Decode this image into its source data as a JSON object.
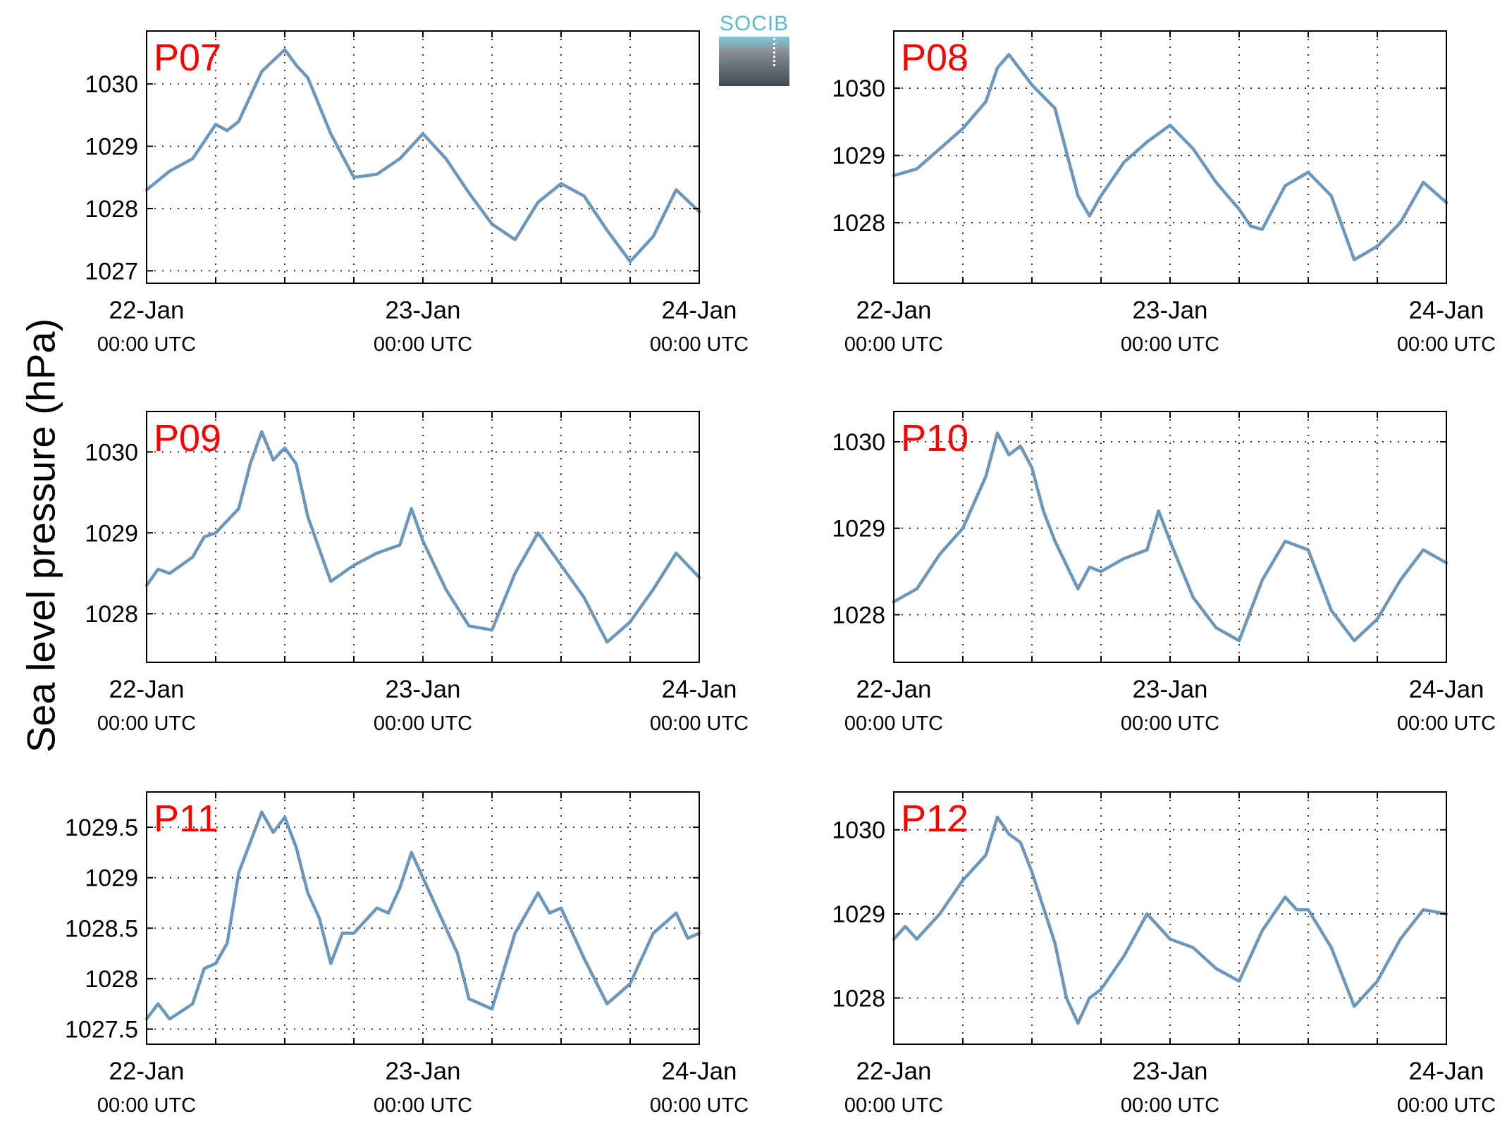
{
  "figure": {
    "ylabel": "Sea level pressure (hPa)",
    "logo_text": "SOCIB",
    "x_tick_dates": [
      "22-Jan",
      "23-Jan",
      "24-Jan"
    ],
    "x_tick_times": [
      "00:00 UTC",
      "00:00 UTC",
      "00:00 UTC"
    ],
    "line_color": "#6b97bd",
    "label_color": "#ff0000"
  },
  "chart_data": [
    {
      "type": "line",
      "title": "P07",
      "xlim": [
        0,
        48
      ],
      "ylim": [
        1026.8,
        1030.85
      ],
      "yticks": [
        1027,
        1028,
        1029,
        1030
      ],
      "ytick_labels": [
        "1027",
        "1028",
        "1029",
        "1030"
      ],
      "x": [
        0,
        2,
        4,
        6,
        7,
        8,
        10,
        12,
        13,
        14,
        16,
        18,
        20,
        22,
        24,
        26,
        28,
        30,
        32,
        34,
        36,
        38,
        40,
        42,
        44,
        46,
        48
      ],
      "values": [
        1028.3,
        1028.6,
        1028.8,
        1029.35,
        1029.25,
        1029.4,
        1030.2,
        1030.55,
        1030.3,
        1030.1,
        1029.2,
        1028.5,
        1028.55,
        1028.8,
        1029.2,
        1028.8,
        1028.25,
        1027.75,
        1027.5,
        1028.1,
        1028.4,
        1028.2,
        1027.65,
        1027.15,
        1027.55,
        1028.3,
        1027.95
      ]
    },
    {
      "type": "line",
      "title": "P08",
      "xlim": [
        0,
        48
      ],
      "ylim": [
        1027.1,
        1030.85
      ],
      "yticks": [
        1028,
        1029,
        1030
      ],
      "ytick_labels": [
        "1028",
        "1029",
        "1030"
      ],
      "x": [
        0,
        2,
        4,
        6,
        8,
        9,
        10,
        12,
        14,
        16,
        17,
        18,
        20,
        22,
        24,
        26,
        28,
        30,
        31,
        32,
        34,
        36,
        38,
        40,
        42,
        44,
        46,
        48
      ],
      "values": [
        1028.7,
        1028.8,
        1029.1,
        1029.4,
        1029.8,
        1030.3,
        1030.5,
        1030.05,
        1029.7,
        1028.4,
        1028.1,
        1028.4,
        1028.9,
        1029.2,
        1029.45,
        1029.1,
        1028.6,
        1028.2,
        1027.95,
        1027.9,
        1028.55,
        1028.75,
        1028.4,
        1027.45,
        1027.65,
        1028.0,
        1028.6,
        1028.3
      ]
    },
    {
      "type": "line",
      "title": "P09",
      "xlim": [
        0,
        48
      ],
      "ylim": [
        1027.4,
        1030.5
      ],
      "yticks": [
        1028,
        1029,
        1030
      ],
      "ytick_labels": [
        "1028",
        "1029",
        "1030"
      ],
      "x": [
        0,
        1,
        2,
        4,
        5,
        6,
        8,
        9,
        10,
        11,
        12,
        13,
        14,
        16,
        18,
        20,
        22,
        23,
        24,
        26,
        28,
        30,
        32,
        34,
        36,
        38,
        40,
        42,
        44,
        46,
        48
      ],
      "values": [
        1028.35,
        1028.55,
        1028.5,
        1028.7,
        1028.95,
        1029.0,
        1029.3,
        1029.85,
        1030.25,
        1029.9,
        1030.05,
        1029.85,
        1029.2,
        1028.4,
        1028.6,
        1028.75,
        1028.85,
        1029.3,
        1028.9,
        1028.3,
        1027.85,
        1027.8,
        1028.5,
        1029.0,
        1028.6,
        1028.2,
        1027.65,
        1027.9,
        1028.3,
        1028.75,
        1028.45
      ]
    },
    {
      "type": "line",
      "title": "P10",
      "xlim": [
        0,
        48
      ],
      "ylim": [
        1027.45,
        1030.35
      ],
      "yticks": [
        1028,
        1029,
        1030
      ],
      "ytick_labels": [
        "1028",
        "1029",
        "1030"
      ],
      "x": [
        0,
        2,
        4,
        6,
        8,
        9,
        10,
        11,
        12,
        13,
        14,
        16,
        17,
        18,
        20,
        22,
        23,
        24,
        26,
        28,
        30,
        32,
        34,
        36,
        38,
        40,
        42,
        44,
        46,
        48
      ],
      "values": [
        1028.15,
        1028.3,
        1028.7,
        1029.0,
        1029.6,
        1030.1,
        1029.85,
        1029.95,
        1029.7,
        1029.2,
        1028.85,
        1028.3,
        1028.55,
        1028.5,
        1028.65,
        1028.75,
        1029.2,
        1028.85,
        1028.2,
        1027.85,
        1027.7,
        1028.4,
        1028.85,
        1028.75,
        1028.05,
        1027.7,
        1027.95,
        1028.4,
        1028.75,
        1028.6
      ]
    },
    {
      "type": "line",
      "title": "P11",
      "xlim": [
        0,
        48
      ],
      "ylim": [
        1027.35,
        1029.85
      ],
      "yticks": [
        1027.5,
        1028,
        1028.5,
        1029,
        1029.5
      ],
      "ytick_labels": [
        "1027.5",
        "1028",
        "1028.5",
        "1029",
        "1029.5"
      ],
      "x": [
        0,
        1,
        2,
        4,
        5,
        6,
        7,
        8,
        9,
        10,
        11,
        12,
        13,
        14,
        15,
        16,
        17,
        18,
        20,
        21,
        22,
        23,
        24,
        26,
        27,
        28,
        30,
        32,
        34,
        35,
        36,
        38,
        40,
        42,
        44,
        46,
        47,
        48
      ],
      "values": [
        1027.6,
        1027.75,
        1027.6,
        1027.75,
        1028.1,
        1028.15,
        1028.35,
        1029.05,
        1029.35,
        1029.65,
        1029.45,
        1029.6,
        1029.3,
        1028.85,
        1028.6,
        1028.15,
        1028.45,
        1028.45,
        1028.7,
        1028.65,
        1028.9,
        1029.25,
        1029.0,
        1028.5,
        1028.25,
        1027.8,
        1027.7,
        1028.45,
        1028.85,
        1028.65,
        1028.7,
        1028.2,
        1027.75,
        1027.95,
        1028.45,
        1028.65,
        1028.4,
        1028.45
      ]
    },
    {
      "type": "line",
      "title": "P12",
      "xlim": [
        0,
        48
      ],
      "ylim": [
        1027.45,
        1030.45
      ],
      "yticks": [
        1028,
        1029,
        1030
      ],
      "ytick_labels": [
        "1028",
        "1029",
        "1030"
      ],
      "x": [
        0,
        1,
        2,
        4,
        6,
        8,
        9,
        10,
        11,
        12,
        14,
        15,
        16,
        17,
        18,
        20,
        22,
        24,
        26,
        28,
        30,
        32,
        34,
        35,
        36,
        38,
        40,
        42,
        44,
        46,
        48
      ],
      "values": [
        1028.7,
        1028.85,
        1028.7,
        1029.0,
        1029.4,
        1029.7,
        1030.15,
        1029.95,
        1029.85,
        1029.5,
        1028.65,
        1028.0,
        1027.7,
        1028.0,
        1028.1,
        1028.5,
        1029.0,
        1028.7,
        1028.6,
        1028.35,
        1028.2,
        1028.8,
        1029.2,
        1029.05,
        1029.05,
        1028.6,
        1027.9,
        1028.2,
        1028.7,
        1029.05,
        1029.0
      ]
    }
  ]
}
